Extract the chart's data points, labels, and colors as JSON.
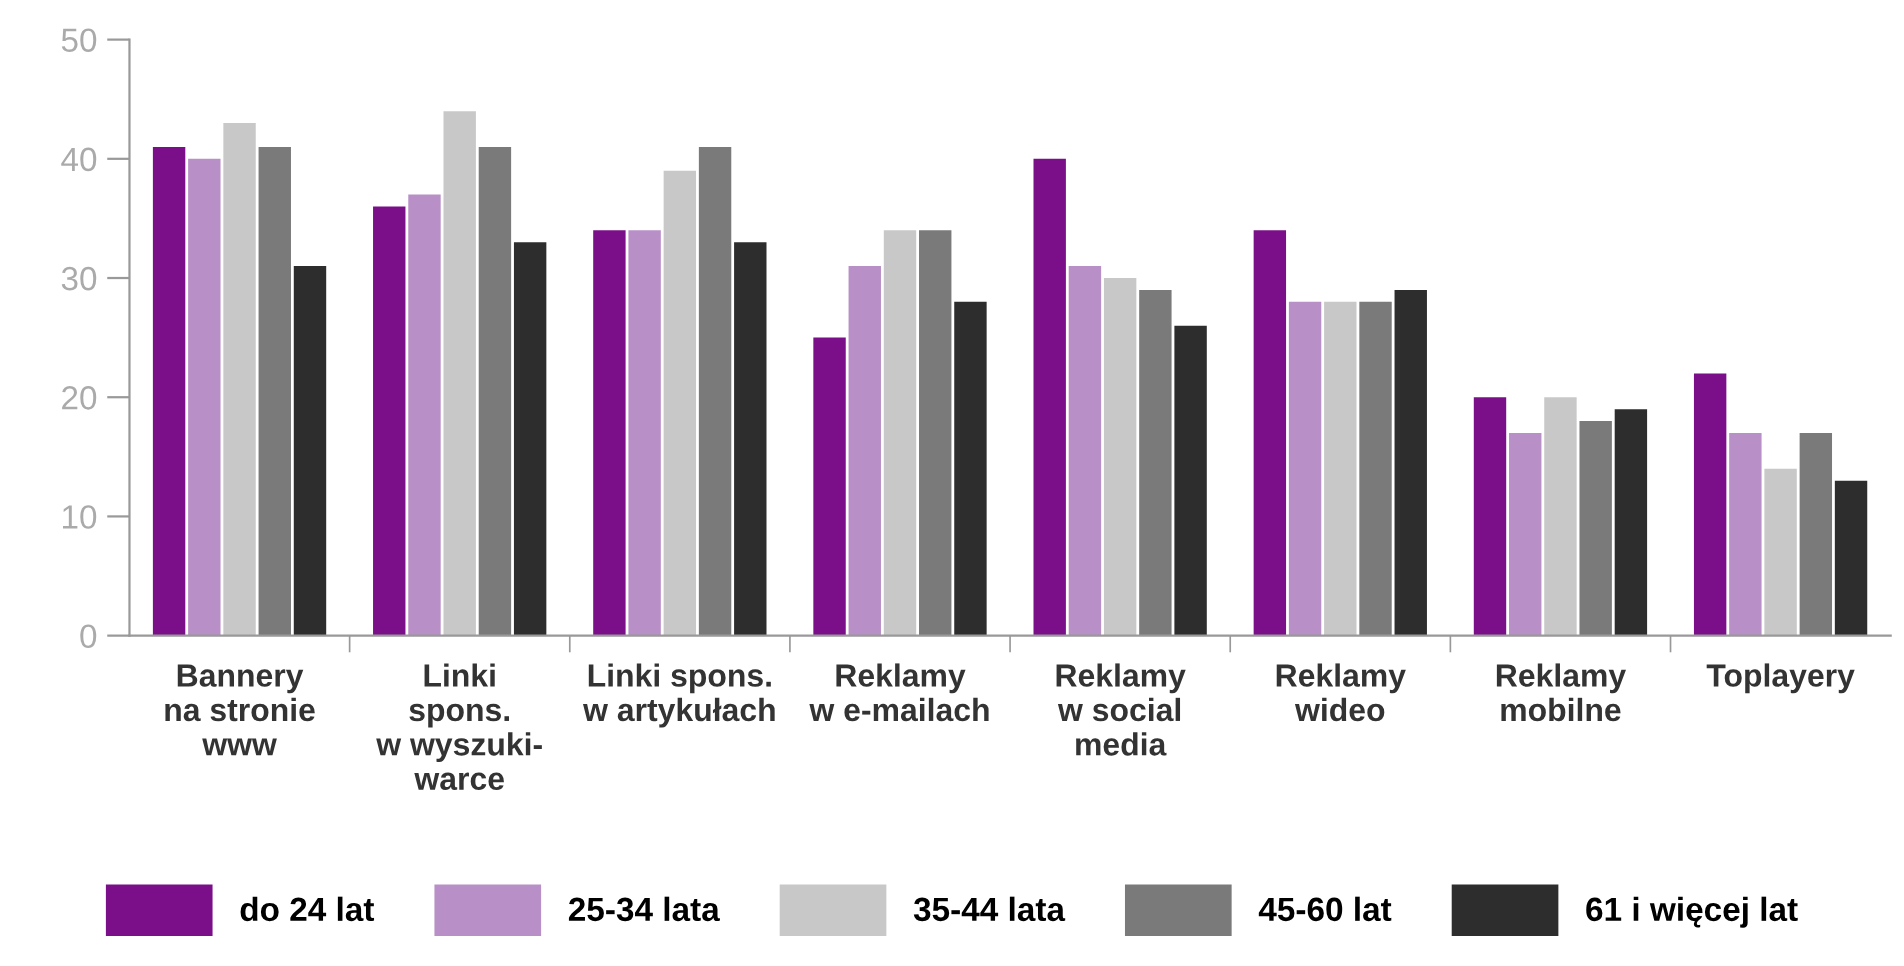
{
  "chart_data": {
    "type": "bar",
    "categories": [
      "Bannery\nna stronie\nwww",
      "Linki\nspons.\nw wyszuki-\nwarce",
      "Linki spons.\nw artykułach",
      "Reklamy\nw e-mailach",
      "Reklamy\nw social\nmedia",
      "Reklamy\nwideo",
      "Reklamy\nmobilne",
      "Toplayery"
    ],
    "series": [
      {
        "name": "do 24 lat",
        "color": "#7b0f8a",
        "values": [
          41,
          36,
          34,
          25,
          40,
          34,
          20,
          22
        ]
      },
      {
        "name": "25-34 lata",
        "color": "#b98fc7",
        "values": [
          40,
          37,
          34,
          31,
          31,
          28,
          17,
          17
        ]
      },
      {
        "name": "35-44 lata",
        "color": "#c8c8c8",
        "values": [
          43,
          44,
          39,
          34,
          30,
          28,
          20,
          14
        ]
      },
      {
        "name": "45-60 lat",
        "color": "#7a7a7a",
        "values": [
          41,
          41,
          41,
          34,
          29,
          28,
          18,
          17
        ]
      },
      {
        "name": "61 i więcej lat",
        "color": "#2d2d2d",
        "values": [
          31,
          33,
          33,
          28,
          26,
          29,
          19,
          13
        ]
      }
    ],
    "ylim": [
      0,
      50
    ],
    "yticks": [
      0,
      10,
      20,
      30,
      40,
      50
    ],
    "grid": false,
    "legend": "bottom"
  }
}
